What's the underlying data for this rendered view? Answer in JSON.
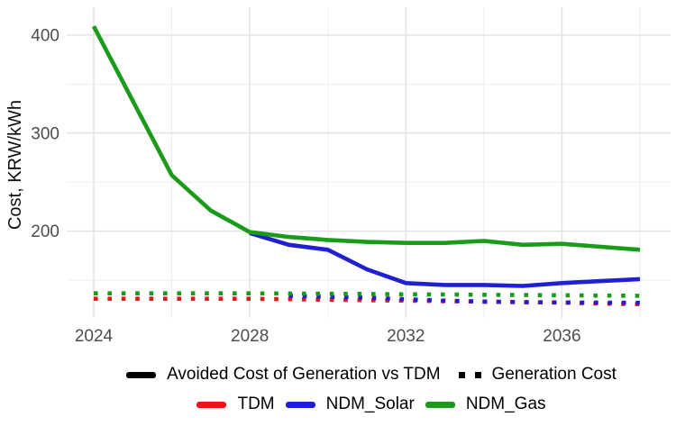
{
  "colors": {
    "tdm": "#ea1515",
    "solar": "#2020d2",
    "gas": "#1a9b1a",
    "legend_key": "#000000",
    "grid_major": "#e3e3e3",
    "grid_minor": "#eeeeee",
    "tick_label": "#4d4d4d",
    "axis_title": "#111111"
  },
  "y_axis": {
    "title": "Cost, KRW/kWh",
    "tick_labels": [
      "200",
      "300",
      "400"
    ]
  },
  "x_axis": {
    "tick_labels": [
      "2024",
      "2028",
      "2032",
      "2036"
    ]
  },
  "legend": {
    "linetype_row": [
      {
        "label": "Avoided Cost of Generation vs TDM",
        "key": "solid"
      },
      {
        "label": "Generation Cost",
        "key": "dotted"
      }
    ],
    "color_row": [
      {
        "label": "TDM",
        "key": "tdm"
      },
      {
        "label": "NDM_Solar",
        "key": "solar"
      },
      {
        "label": "NDM_Gas",
        "key": "gas"
      }
    ]
  },
  "chart_data": {
    "type": "line",
    "title": "",
    "xlabel": "",
    "ylabel": "Cost, KRW/kWh",
    "xlim": [
      2023.3,
      2038.7
    ],
    "ylim": [
      110,
      424
    ],
    "x_major_ticks": [
      2024,
      2028,
      2032,
      2036
    ],
    "x_minor_ticks": [
      2026,
      2030,
      2034,
      2038
    ],
    "y_major_ticks": [
      200,
      300,
      400
    ],
    "y_minor_ticks": [
      150,
      250,
      350
    ],
    "grid": true,
    "legend_position": "bottom",
    "series": [
      {
        "name": "TDM Generation Cost",
        "color_key": "tdm",
        "style": "dotted",
        "x": [
          2024,
          2025,
          2026,
          2027,
          2028,
          2029,
          2030,
          2031,
          2032,
          2033,
          2034,
          2035,
          2036,
          2037,
          2038
        ],
        "y": [
          131,
          131,
          131,
          131,
          131,
          130.5,
          130,
          129.5,
          129,
          128.5,
          128,
          127.5,
          127,
          126,
          125.5
        ]
      },
      {
        "name": "NDM_Solar Generation Cost",
        "color_key": "solar",
        "style": "dotted",
        "x": [
          2029,
          2030,
          2031,
          2032,
          2033,
          2034,
          2035,
          2036,
          2037,
          2038
        ],
        "y": [
          134,
          133,
          132,
          130.5,
          129,
          128,
          127.5,
          127.2,
          127,
          126.8
        ]
      },
      {
        "name": "NDM_Gas Generation Cost",
        "color_key": "gas",
        "style": "dotted",
        "x": [
          2024,
          2025,
          2026,
          2027,
          2028,
          2029,
          2030,
          2031,
          2032,
          2033,
          2034,
          2035,
          2036,
          2037,
          2038
        ],
        "y": [
          136.5,
          136.5,
          136.5,
          136.5,
          136.5,
          136.3,
          136,
          135.8,
          135.5,
          135.3,
          135,
          134.8,
          134.5,
          134.2,
          134
        ]
      },
      {
        "name": "NDM_Solar Avoided Cost of Generation vs TDM",
        "color_key": "solar",
        "style": "solid",
        "x": [
          2028,
          2029,
          2030,
          2031,
          2032,
          2033,
          2034,
          2035,
          2036,
          2037,
          2038
        ],
        "y": [
          198,
          186,
          181,
          161,
          147,
          145,
          145,
          144,
          147,
          149,
          151
        ]
      },
      {
        "name": "NDM_Gas Avoided Cost of Generation vs TDM",
        "color_key": "gas",
        "style": "solid",
        "x": [
          2024,
          2025,
          2026,
          2027,
          2028,
          2029,
          2030,
          2031,
          2032,
          2033,
          2034,
          2035,
          2036,
          2037,
          2038
        ],
        "y": [
          409,
          333,
          257,
          221,
          199,
          194,
          191,
          189,
          188,
          188,
          190,
          186,
          187,
          184,
          181
        ]
      }
    ]
  }
}
